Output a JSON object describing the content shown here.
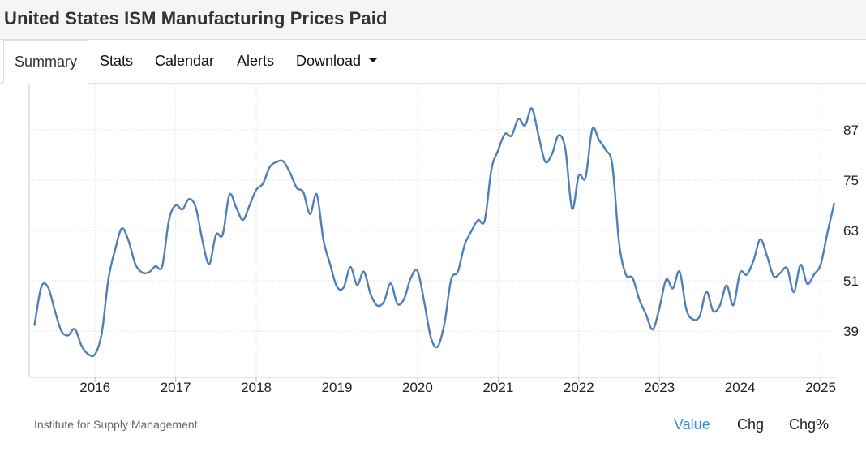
{
  "header": {
    "title": "United States ISM Manufacturing Prices Paid"
  },
  "tabs": [
    {
      "label": "Summary",
      "active": true
    },
    {
      "label": "Stats"
    },
    {
      "label": "Calendar"
    },
    {
      "label": "Alerts"
    },
    {
      "label": "Download",
      "icon": "caret-down-icon"
    }
  ],
  "footer": {
    "source": "Institute for Supply Management",
    "options": [
      {
        "label": "Value",
        "active": true
      },
      {
        "label": "Chg"
      },
      {
        "label": "Chg%"
      }
    ]
  },
  "colors": {
    "line": "#4f7fb8",
    "grid": "#e6e6e6",
    "active_option": "#3b8fd6"
  },
  "chart_data": {
    "type": "line",
    "title": "United States ISM Manufacturing Prices Paid",
    "xlabel": "",
    "ylabel": "",
    "grid": true,
    "y_axis_side": "right",
    "x_ticks": [
      "2016",
      "2017",
      "2018",
      "2019",
      "2020",
      "2021",
      "2022",
      "2023",
      "2024",
      "2025"
    ],
    "y_ticks": [
      39,
      51,
      63,
      75,
      87
    ],
    "xlim": [
      "2015-04",
      "2025-03"
    ],
    "ylim": [
      28,
      98
    ],
    "series": [
      {
        "values": [
          [
            "2015-04",
            40.5
          ],
          [
            "2015-05",
            49.5
          ],
          [
            "2015-06",
            49.5
          ],
          [
            "2015-07",
            44.0
          ],
          [
            "2015-08",
            39.0
          ],
          [
            "2015-09",
            38.0
          ],
          [
            "2015-10",
            39.5
          ],
          [
            "2015-11",
            35.5
          ],
          [
            "2015-12",
            33.5
          ],
          [
            "2016-01",
            33.5
          ],
          [
            "2016-02",
            38.5
          ],
          [
            "2016-03",
            51.5
          ],
          [
            "2016-04",
            58.5
          ],
          [
            "2016-05",
            63.5
          ],
          [
            "2016-06",
            60.5
          ],
          [
            "2016-07",
            55.0
          ],
          [
            "2016-08",
            53.0
          ],
          [
            "2016-09",
            53.0
          ],
          [
            "2016-10",
            54.5
          ],
          [
            "2016-11",
            54.5
          ],
          [
            "2016-12",
            65.5
          ],
          [
            "2017-01",
            69.0
          ],
          [
            "2017-02",
            68.0
          ],
          [
            "2017-03",
            70.5
          ],
          [
            "2017-04",
            68.5
          ],
          [
            "2017-05",
            60.5
          ],
          [
            "2017-06",
            55.0
          ],
          [
            "2017-07",
            62.0
          ],
          [
            "2017-08",
            62.0
          ],
          [
            "2017-09",
            71.5
          ],
          [
            "2017-10",
            68.5
          ],
          [
            "2017-11",
            65.5
          ],
          [
            "2017-12",
            69.0
          ],
          [
            "2018-01",
            72.7
          ],
          [
            "2018-02",
            74.2
          ],
          [
            "2018-03",
            78.1
          ],
          [
            "2018-04",
            79.3
          ],
          [
            "2018-05",
            79.5
          ],
          [
            "2018-06",
            76.8
          ],
          [
            "2018-07",
            73.2
          ],
          [
            "2018-08",
            72.1
          ],
          [
            "2018-09",
            66.9
          ],
          [
            "2018-10",
            71.6
          ],
          [
            "2018-11",
            60.7
          ],
          [
            "2018-12",
            54.9
          ],
          [
            "2019-01",
            49.6
          ],
          [
            "2019-02",
            49.4
          ],
          [
            "2019-03",
            54.3
          ],
          [
            "2019-04",
            50.0
          ],
          [
            "2019-05",
            53.2
          ],
          [
            "2019-06",
            47.9
          ],
          [
            "2019-07",
            45.1
          ],
          [
            "2019-08",
            46.0
          ],
          [
            "2019-09",
            50.4
          ],
          [
            "2019-10",
            45.5
          ],
          [
            "2019-11",
            46.7
          ],
          [
            "2019-12",
            51.7
          ],
          [
            "2020-01",
            53.3
          ],
          [
            "2020-02",
            45.9
          ],
          [
            "2020-03",
            37.4
          ],
          [
            "2020-04",
            35.3
          ],
          [
            "2020-05",
            40.8
          ],
          [
            "2020-06",
            51.3
          ],
          [
            "2020-07",
            53.2
          ],
          [
            "2020-08",
            59.5
          ],
          [
            "2020-09",
            62.8
          ],
          [
            "2020-10",
            65.5
          ],
          [
            "2020-11",
            65.4
          ],
          [
            "2020-12",
            77.6
          ],
          [
            "2021-01",
            82.1
          ],
          [
            "2021-02",
            86.0
          ],
          [
            "2021-03",
            85.6
          ],
          [
            "2021-04",
            89.6
          ],
          [
            "2021-05",
            88.0
          ],
          [
            "2021-06",
            92.1
          ],
          [
            "2021-07",
            85.7
          ],
          [
            "2021-08",
            79.4
          ],
          [
            "2021-09",
            81.2
          ],
          [
            "2021-10",
            85.7
          ],
          [
            "2021-11",
            82.4
          ],
          [
            "2021-12",
            68.2
          ],
          [
            "2022-01",
            76.1
          ],
          [
            "2022-02",
            75.6
          ],
          [
            "2022-03",
            87.1
          ],
          [
            "2022-04",
            84.6
          ],
          [
            "2022-05",
            82.2
          ],
          [
            "2022-06",
            78.5
          ],
          [
            "2022-07",
            60.0
          ],
          [
            "2022-08",
            52.5
          ],
          [
            "2022-09",
            51.7
          ],
          [
            "2022-10",
            46.6
          ],
          [
            "2022-11",
            43.0
          ],
          [
            "2022-12",
            39.4
          ],
          [
            "2023-01",
            44.5
          ],
          [
            "2023-02",
            51.3
          ],
          [
            "2023-03",
            49.2
          ],
          [
            "2023-04",
            53.2
          ],
          [
            "2023-05",
            44.2
          ],
          [
            "2023-06",
            41.8
          ],
          [
            "2023-07",
            42.6
          ],
          [
            "2023-08",
            48.4
          ],
          [
            "2023-09",
            43.8
          ],
          [
            "2023-10",
            45.1
          ],
          [
            "2023-11",
            49.9
          ],
          [
            "2023-12",
            45.2
          ],
          [
            "2024-01",
            52.9
          ],
          [
            "2024-02",
            52.5
          ],
          [
            "2024-03",
            55.8
          ],
          [
            "2024-04",
            60.9
          ],
          [
            "2024-05",
            57.0
          ],
          [
            "2024-06",
            52.1
          ],
          [
            "2024-07",
            52.9
          ],
          [
            "2024-08",
            54.0
          ],
          [
            "2024-09",
            48.3
          ],
          [
            "2024-10",
            54.8
          ],
          [
            "2024-11",
            50.3
          ],
          [
            "2024-12",
            52.5
          ],
          [
            "2025-01",
            54.9
          ],
          [
            "2025-02",
            62.4
          ],
          [
            "2025-03",
            69.4
          ]
        ]
      }
    ]
  }
}
